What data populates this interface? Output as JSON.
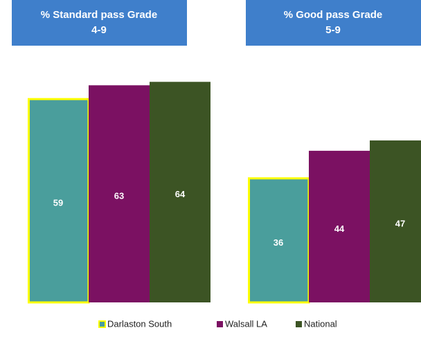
{
  "chart_data": [
    {
      "type": "bar",
      "title": "% Standard pass  Grade",
      "subtitle": "4-9",
      "series": [
        {
          "name": "Darlaston South",
          "color": "#4a9e9c",
          "edgecolor": "#ffff00",
          "values": [
            59
          ]
        },
        {
          "name": "Walsall LA",
          "color": "#7b1162",
          "values": [
            63
          ]
        },
        {
          "name": "National",
          "color": "#3c5424",
          "values": [
            64
          ]
        }
      ]
    },
    {
      "type": "bar",
      "title": "% Good pass Grade",
      "subtitle": "5-9",
      "series": [
        {
          "name": "Darlaston South",
          "color": "#4a9e9c",
          "edgecolor": "#ffff00",
          "values": [
            36
          ]
        },
        {
          "name": "Walsall LA",
          "color": "#7b1162",
          "values": [
            44
          ]
        },
        {
          "name": "National",
          "color": "#3c5424",
          "values": [
            47
          ]
        }
      ]
    }
  ]
}
